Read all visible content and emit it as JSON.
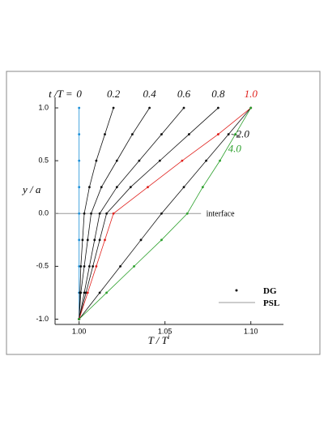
{
  "chart_data": {
    "type": "line",
    "x_label": "T / T",
    "x_label_superscript": "i",
    "y_label": "y / a",
    "label_prefix": "t /T =",
    "annotation": "interface",
    "xlim": [
      0.986,
      1.119
    ],
    "ylim": [
      -1.05,
      1.1
    ],
    "xticks": [
      {
        "value": 1.0,
        "label": "1.00"
      },
      {
        "value": 1.05,
        "label": "1.05"
      },
      {
        "value": 1.1,
        "label": "1.10"
      }
    ],
    "yticks": [
      {
        "value": -1.0,
        "label": "-1.0"
      },
      {
        "value": -0.5,
        "label": "-0.5"
      },
      {
        "value": 0.0,
        "label": "0.0"
      },
      {
        "value": 0.5,
        "label": "0.5"
      },
      {
        "value": 1.0,
        "label": "1.0"
      }
    ],
    "y": [
      -1,
      -0.75,
      -0.5,
      -0.25,
      0,
      0.25,
      0.5,
      0.75,
      1
    ],
    "series": [
      {
        "name": "0",
        "color": "#1a8fd8",
        "x": [
          1.0,
          1.0,
          1.0,
          1.0,
          1.0,
          1.0,
          1.0,
          1.0,
          1.0
        ]
      },
      {
        "name": "0.2",
        "color": "#111111",
        "x": [
          1.0,
          1.0005,
          1.001,
          1.002,
          1.003,
          1.006,
          1.01,
          1.015,
          1.02
        ]
      },
      {
        "name": "0.4",
        "color": "#111111",
        "x": [
          1.0,
          1.001,
          1.003,
          1.005,
          1.007,
          1.013,
          1.022,
          1.031,
          1.041
        ]
      },
      {
        "name": "0.6",
        "color": "#111111",
        "x": [
          1.0,
          1.003,
          1.006,
          1.009,
          1.012,
          1.022,
          1.035,
          1.048,
          1.061
        ]
      },
      {
        "name": "0.8",
        "color": "#111111",
        "x": [
          1.0,
          1.004,
          1.008,
          1.012,
          1.016,
          1.03,
          1.047,
          1.064,
          1.081
        ]
      },
      {
        "name": "1.0",
        "color": "#e0201c",
        "x": [
          1.0,
          1.005,
          1.01,
          1.015,
          1.02,
          1.04,
          1.06,
          1.081,
          1.1
        ]
      },
      {
        "name": "2.0",
        "color": "#111111",
        "x": [
          1.0,
          1.012,
          1.024,
          1.036,
          1.048,
          1.061,
          1.074,
          1.087,
          1.1
        ]
      },
      {
        "name": "4.0",
        "color": "#2ca02c",
        "x": [
          1.0,
          1.016,
          1.032,
          1.048,
          1.063,
          1.072,
          1.082,
          1.091,
          1.1
        ]
      }
    ],
    "legend": [
      "DG",
      "PSL"
    ]
  }
}
